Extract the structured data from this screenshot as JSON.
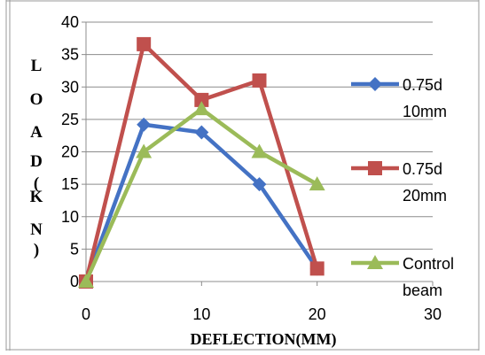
{
  "chart_data": {
    "type": "line",
    "x": [
      0,
      5,
      10,
      15,
      20
    ],
    "series": [
      {
        "name": "0.75d 10mm",
        "legend_lines": [
          "0.75d",
          "10mm"
        ],
        "values": [
          0,
          24.2,
          23,
          15,
          2
        ],
        "color": "#4472C4",
        "marker": "diamond"
      },
      {
        "name": "0.75d 20mm",
        "legend_lines": [
          "0.75d",
          "20mm"
        ],
        "values": [
          0,
          36.6,
          28,
          31,
          2
        ],
        "color": "#C0504D",
        "marker": "square"
      },
      {
        "name": "Control beam",
        "legend_lines": [
          "Control",
          "beam"
        ],
        "values": [
          0,
          20,
          26.6,
          20,
          15
        ],
        "color": "#9BBB59",
        "marker": "triangle"
      }
    ],
    "xlim": [
      0,
      30
    ],
    "ylim": [
      0,
      40
    ],
    "xticks": [
      0,
      10,
      20,
      30
    ],
    "yticks": [
      0,
      5,
      10,
      15,
      20,
      25,
      30,
      35,
      40
    ],
    "xlabel": "DEFLECTION(MM)",
    "ylabel_letters": [
      "L",
      "O",
      "A",
      "D",
      "(",
      "K",
      "N",
      ")"
    ],
    "grid": "horizontal",
    "legend_position": "right"
  }
}
